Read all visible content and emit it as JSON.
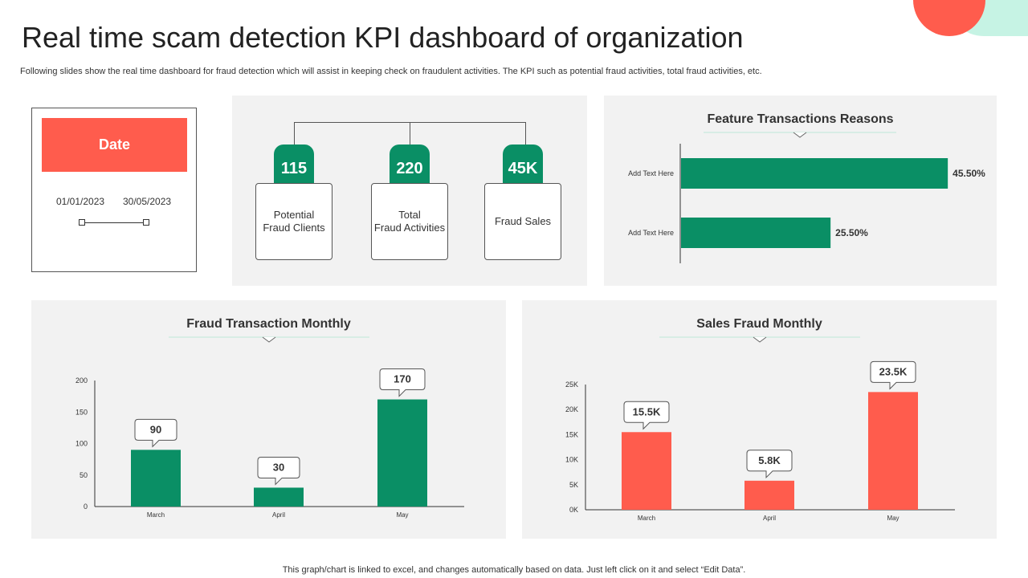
{
  "title": "Real time scam detection KPI dashboard of organization",
  "subtitle": "Following slides show the real time dashboard for fraud detection which will  assist in keeping check on fraudulent activities. The KPI such as potential fraud activities, total fraud activities, etc.",
  "footer": "This graph/chart is linked to excel, and changes automatically based on data. Just left click on it and select “Edit Data”.",
  "colors": {
    "green": "#0a8f65",
    "red": "#ff5c4d",
    "mint": "#c6f3e4",
    "panel": "#f2f2f2"
  },
  "date_filter": {
    "header": "Date",
    "start": "01/01/2023",
    "end": "30/05/2023"
  },
  "kpis": [
    {
      "value": "115",
      "label": "Potential\nFraud Clients"
    },
    {
      "value": "220",
      "label": "Total\nFraud Activities"
    },
    {
      "value": "45K",
      "label": "Fraud Sales"
    }
  ],
  "chart_data": [
    {
      "type": "bar",
      "orientation": "horizontal",
      "title": "Feature Transactions Reasons",
      "categories": [
        "Add Text Here",
        "Add Text Here"
      ],
      "values": [
        45.5,
        25.5
      ],
      "data_labels": [
        "45.50%",
        "25.50%"
      ],
      "xlim": [
        0,
        100
      ],
      "color": "#0a8f65"
    },
    {
      "type": "bar",
      "title": "Fraud Transaction Monthly",
      "categories": [
        "March",
        "April",
        "May"
      ],
      "values": [
        90,
        30,
        170
      ],
      "data_labels": [
        "90",
        "30",
        "170"
      ],
      "ylim": [
        0,
        200
      ],
      "yticks": [
        0,
        50,
        100,
        150,
        200
      ],
      "ytick_labels": [
        "0",
        "50",
        "100",
        "150",
        "200"
      ],
      "color": "#0a8f65"
    },
    {
      "type": "bar",
      "title": "Sales Fraud Monthly",
      "categories": [
        "March",
        "April",
        "May"
      ],
      "values": [
        15500,
        5800,
        23500
      ],
      "data_labels": [
        "15.5K",
        "5.8K",
        "23.5K"
      ],
      "ylim": [
        0,
        25000
      ],
      "yticks": [
        0,
        5000,
        10000,
        15000,
        20000,
        25000
      ],
      "ytick_labels": [
        "0K",
        "5K",
        "10K",
        "15K",
        "20K",
        "25K"
      ],
      "color": "#ff5c4d"
    }
  ]
}
